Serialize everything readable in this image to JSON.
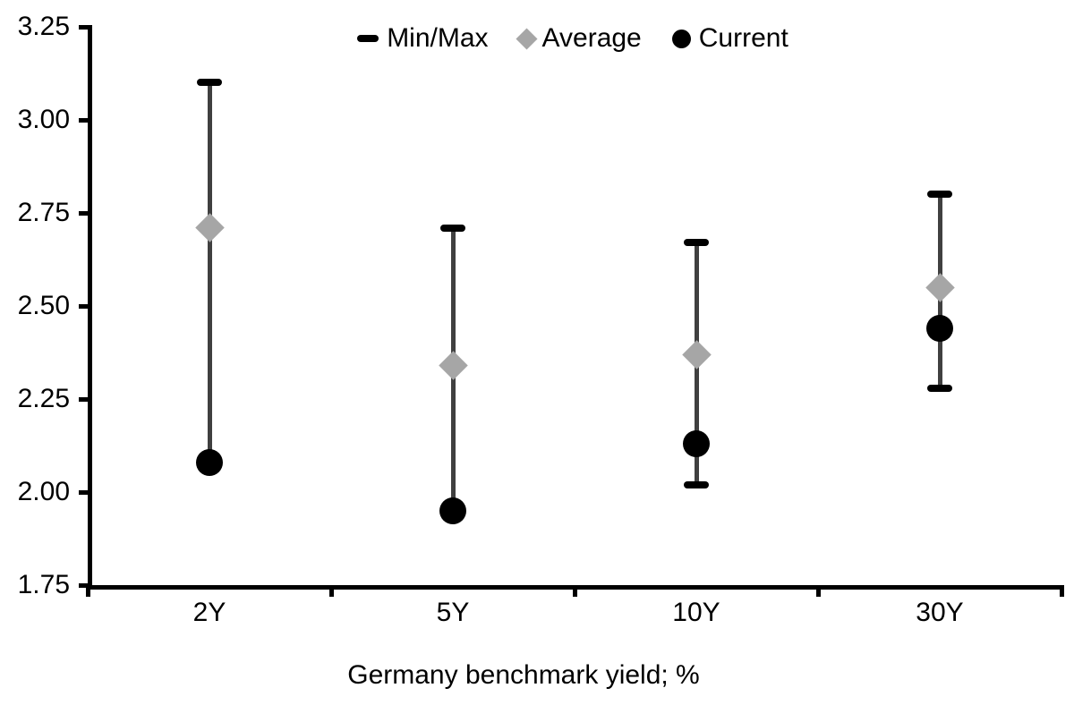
{
  "chart_data": {
    "type": "scatter",
    "title": "",
    "xlabel": "Germany benchmark yield; %",
    "ylabel": "",
    "categories": [
      "2Y",
      "5Y",
      "10Y",
      "30Y"
    ],
    "ylim": [
      1.75,
      3.25
    ],
    "ytick_step": 0.25,
    "ytick_labels": [
      "3.25",
      "3.00",
      "2.75",
      "2.50",
      "2.25",
      "2.00",
      "1.75"
    ],
    "grid": false,
    "legend_position": "top-center",
    "series": [
      {
        "name": "Min/Max",
        "marker": "dash",
        "min": [
          2.08,
          1.95,
          2.02,
          2.28
        ],
        "max": [
          3.1,
          2.71,
          2.67,
          2.8
        ]
      },
      {
        "name": "Average",
        "marker": "diamond",
        "values": [
          2.71,
          2.34,
          2.37,
          2.55
        ]
      },
      {
        "name": "Current",
        "marker": "circle",
        "values": [
          2.08,
          1.95,
          2.13,
          2.44
        ]
      }
    ],
    "colors": {
      "minmax_cap": "#000000",
      "range_line": "#404040",
      "average": "#A6A6A6",
      "current": "#000000",
      "axis": "#000000",
      "text": "#000000",
      "background": "#FFFFFF"
    }
  }
}
